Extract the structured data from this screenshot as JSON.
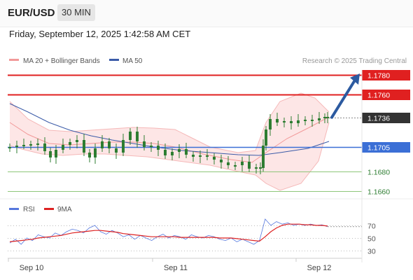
{
  "header": {
    "symbol": "EUR/USD",
    "timeframe": "30 MIN"
  },
  "datetime": "Friday, September 12, 2025 1:42:58 AM CET",
  "legend": {
    "bollinger": "MA 20 + Bollinger Bands",
    "ma50": "MA 50",
    "credit": "Research © 2025 Trading Central"
  },
  "rsi_legend": {
    "rsi": "RSI",
    "ma9": "9MA"
  },
  "colors": {
    "candle": "#2e7d32",
    "resistance": "#e02020",
    "support_line": "#8fc77a",
    "pivot": "#3b6fd6",
    "ma50": "#3b5ba8",
    "bb_fill": "#fde0e0",
    "ma20": "#f29999",
    "arrow": "#2c5aa0",
    "last_price": "#333333",
    "rsi": "#5577dd",
    "rsi_ma": "#dd2222"
  },
  "chart_data": [
    {
      "type": "candlestick",
      "title": "",
      "x_labels": [
        "Sep 10",
        "Sep 11",
        "Sep 12"
      ],
      "ylim": [
        1.165,
        1.1785
      ],
      "levels": [
        {
          "label": "1.1780",
          "value": 1.178,
          "kind": "resistance"
        },
        {
          "label": "1.1760",
          "value": 1.176,
          "kind": "resistance"
        },
        {
          "label": "1.1736",
          "value": 1.1736,
          "kind": "last-price"
        },
        {
          "label": "1.1705",
          "value": 1.1705,
          "kind": "pivot"
        },
        {
          "label": "1.1680",
          "value": 1.168,
          "kind": "support"
        },
        {
          "label": "1.1660",
          "value": 1.166,
          "kind": "support"
        }
      ],
      "arrow": {
        "from": 1.1736,
        "to": 1.178,
        "direction": "up"
      },
      "series": [
        {
          "name": "MA 20 + Bollinger Bands",
          "kind": "band"
        },
        {
          "name": "MA 50",
          "kind": "line"
        }
      ]
    },
    {
      "type": "line",
      "title": "",
      "y_ticks": [
        "70",
        "50",
        "30"
      ],
      "ylim": [
        15,
        85
      ],
      "series": [
        {
          "name": "RSI",
          "values": [
            42,
            48,
            40,
            50,
            46,
            55,
            52,
            50,
            58,
            54,
            60,
            64,
            62,
            58,
            66,
            70,
            60,
            56,
            62,
            58,
            52,
            55,
            48,
            54,
            50,
            46,
            52,
            56,
            50,
            54,
            52,
            48,
            55,
            52,
            50,
            54,
            52,
            48,
            46,
            50,
            44,
            48,
            44,
            40,
            46,
            80,
            70,
            76,
            72,
            74,
            70,
            72,
            70,
            72,
            70,
            71,
            68
          ]
        },
        {
          "name": "9MA",
          "values": [
            44,
            45,
            46,
            47,
            48,
            50,
            51,
            52,
            53,
            54,
            56,
            58,
            59,
            60,
            61,
            62,
            62,
            61,
            60,
            59,
            57,
            56,
            55,
            54,
            53,
            52,
            52,
            52,
            52,
            52,
            51,
            51,
            51,
            51,
            51,
            51,
            51,
            50,
            50,
            50,
            49,
            48,
            47,
            46,
            45,
            52,
            60,
            66,
            70,
            72,
            72,
            72,
            71,
            71,
            70,
            70,
            69
          ]
        }
      ]
    }
  ]
}
